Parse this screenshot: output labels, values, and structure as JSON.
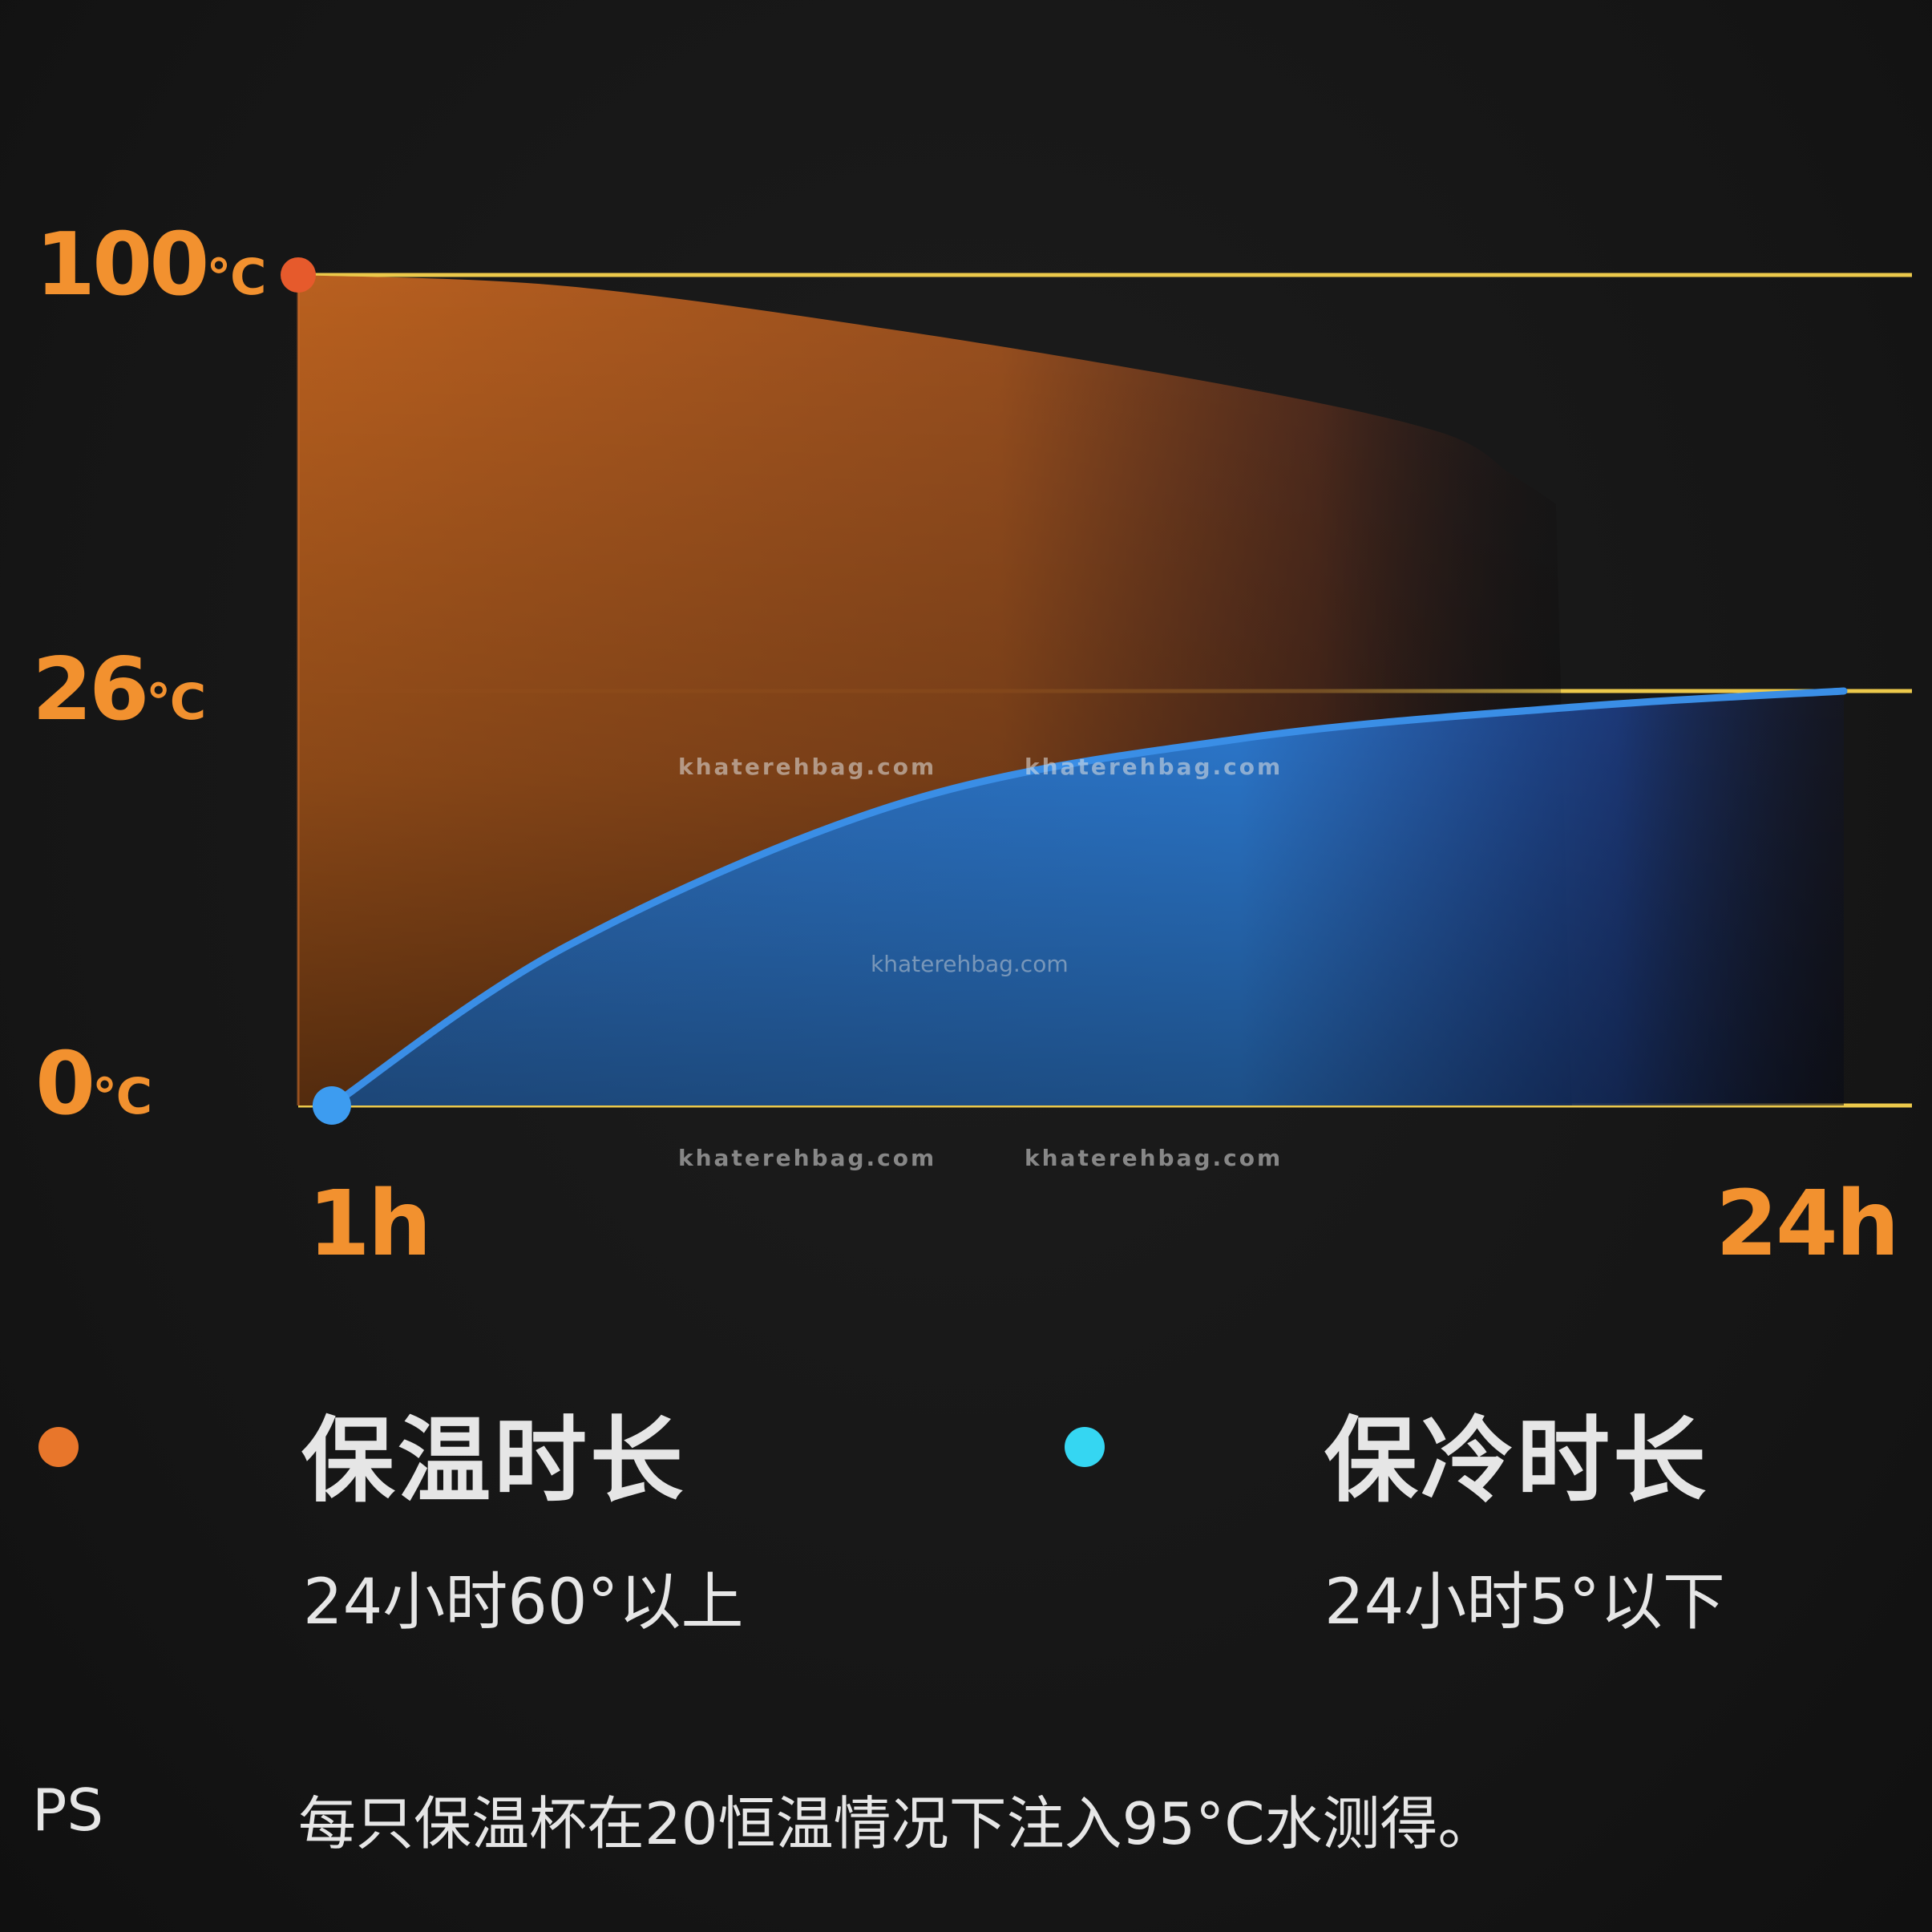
{
  "chart_data": {
    "type": "area",
    "y_tick_labels": [
      {
        "value": 100,
        "num": "100",
        "unit": "℃"
      },
      {
        "value": 26,
        "num": "26",
        "unit": "℃"
      },
      {
        "value": 0,
        "num": "0",
        "unit": "℃"
      }
    ],
    "x_tick_labels": [
      {
        "value": 1,
        "label": "1h"
      },
      {
        "value": 24,
        "label": "24h"
      }
    ],
    "series": [
      {
        "name": "保温时长",
        "color": "#e06a24",
        "points": [
          [
            1,
            100
          ],
          [
            5,
            98
          ],
          [
            10,
            90
          ],
          [
            15,
            80
          ],
          [
            18,
            72
          ],
          [
            19,
            65
          ]
        ]
      },
      {
        "name": "保冷时长",
        "color": "#3a8ee6",
        "points": [
          [
            1.5,
            0
          ],
          [
            5,
            10
          ],
          [
            10,
            19
          ],
          [
            15,
            23
          ],
          [
            20,
            25
          ],
          [
            24,
            26
          ]
        ]
      }
    ],
    "grid": true,
    "gridline_color": "#ecc94b"
  },
  "legend": [
    {
      "title": "保温时长",
      "desc": "24小时60°以上",
      "dot_color": "#e8762b"
    },
    {
      "title": "保冷时长",
      "desc": "24小时5°以下",
      "dot_color": "#35d6f2"
    }
  ],
  "note": {
    "prefix": "PS",
    "text": "每只保温杯在20恒温情况下注入95°C水测得。"
  },
  "watermarks": [
    "khaterehbag.com",
    "khaterehbag.com",
    "khaterehbag.com",
    "khaterehbag.com",
    "khaterehbag.com",
    "khaterehbag.com"
  ]
}
